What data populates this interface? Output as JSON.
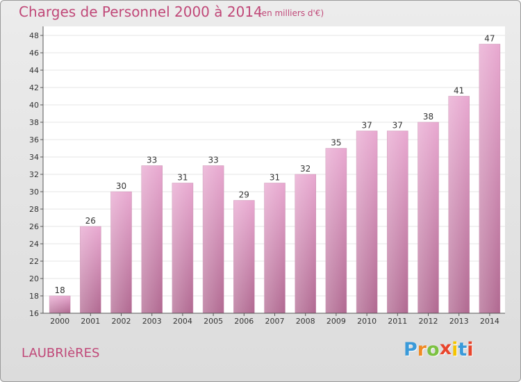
{
  "title": "Charges de Personnel 2000 à 2014",
  "subtitle": "(en milliers d'€)",
  "commune": "LAUBRIèRES",
  "logo": {
    "letters": [
      "P",
      "r",
      "o",
      "x",
      "i",
      "t",
      "i"
    ],
    "colors": [
      "#3a9ad9",
      "#f08a24",
      "#7cc242",
      "#e8452c",
      "#f5c400",
      "#3a9ad9",
      "#e8452c"
    ]
  },
  "colors": {
    "title": "#c04878",
    "bar_top": "#e8a8d0",
    "bar_bottom": "#b06890",
    "plot_background": "#ffffff",
    "grid": "#e6e6e6"
  },
  "chart_data": {
    "type": "bar",
    "title": "Charges de Personnel 2000 à 2014",
    "subtitle": "(en milliers d'€)",
    "categories": [
      "2000",
      "2001",
      "2002",
      "2003",
      "2004",
      "2005",
      "2006",
      "2007",
      "2008",
      "2009",
      "2010",
      "2011",
      "2012",
      "2013",
      "2014"
    ],
    "values": [
      18,
      26,
      30,
      33,
      31,
      33,
      29,
      31,
      32,
      35,
      37,
      37,
      38,
      41,
      47
    ],
    "data_labels": [
      "18",
      "26",
      "30",
      "33",
      "31",
      "33",
      "29",
      "31",
      "32",
      "35",
      "37",
      "37",
      "38",
      "41",
      "47"
    ],
    "yticks": [
      16,
      18,
      20,
      22,
      24,
      26,
      28,
      30,
      32,
      34,
      36,
      38,
      40,
      42,
      44,
      46,
      48
    ],
    "ylim": [
      16,
      48
    ],
    "grid": true,
    "legend": "none"
  }
}
